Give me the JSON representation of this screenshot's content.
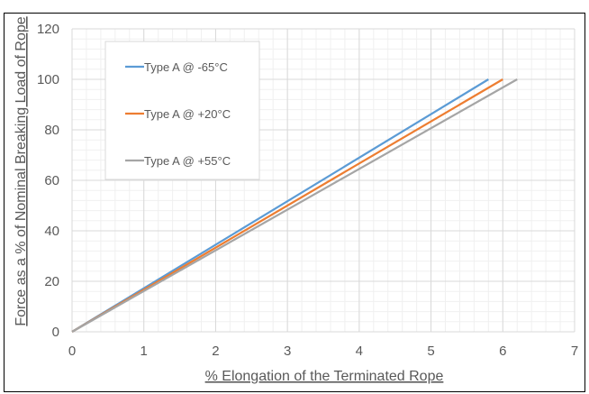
{
  "chart_data": {
    "type": "line",
    "title": "",
    "xlabel": "% Elongation of the Terminated Rope",
    "ylabel": "Force as a % of Nominal Breaking Load of Rope",
    "xlim": [
      0,
      7
    ],
    "ylim": [
      0,
      120
    ],
    "xticks": [
      "0",
      "1",
      "2",
      "3",
      "4",
      "5",
      "6",
      "7"
    ],
    "yticks": [
      "0",
      "20",
      "40",
      "60",
      "80",
      "100",
      "120"
    ],
    "grid": true,
    "legend_position": "top-left",
    "series": [
      {
        "name": "Type A @ -65°C",
        "color": "#5b9bd5",
        "x": [
          0,
          5.8
        ],
        "y": [
          0,
          100
        ]
      },
      {
        "name": "Type A @ +20°C",
        "color": "#ed7d31",
        "x": [
          0,
          6.0
        ],
        "y": [
          0,
          100
        ]
      },
      {
        "name": "Type A @ +55°C",
        "color": "#a5a5a5",
        "x": [
          0,
          6.2
        ],
        "y": [
          0,
          100
        ]
      }
    ]
  }
}
